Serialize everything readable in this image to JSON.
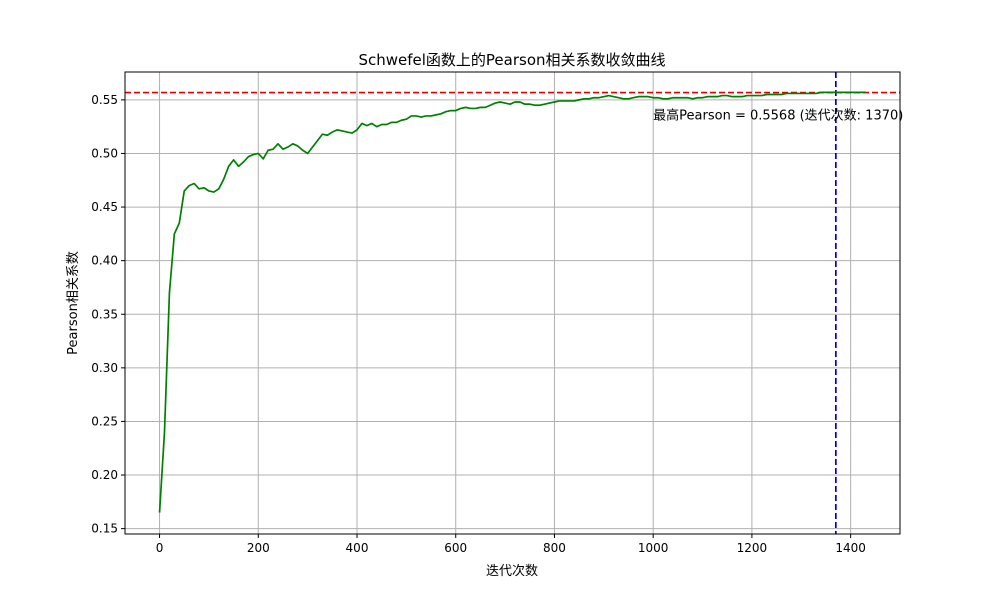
{
  "chart_data": {
    "type": "line",
    "title": "Schwefel函数上的Pearson相关系数收敛曲线",
    "xlabel": "迭代次数",
    "ylabel": "Pearson相关系数",
    "xlim": [
      -70,
      1500
    ],
    "ylim": [
      0.145,
      0.576
    ],
    "xticks": [
      0,
      200,
      400,
      600,
      800,
      1000,
      1200,
      1400
    ],
    "yticks": [
      0.15,
      0.2,
      0.25,
      0.3,
      0.35,
      0.4,
      0.45,
      0.5,
      0.55
    ],
    "grid": true,
    "series": [
      {
        "color": "#008000",
        "x": [
          0,
          10,
          20,
          30,
          40,
          50,
          60,
          70,
          80,
          90,
          100,
          110,
          120,
          130,
          140,
          150,
          160,
          170,
          180,
          190,
          200,
          210,
          220,
          230,
          240,
          250,
          260,
          270,
          280,
          290,
          300,
          310,
          320,
          330,
          340,
          350,
          360,
          370,
          380,
          390,
          400,
          410,
          420,
          430,
          440,
          450,
          460,
          470,
          480,
          490,
          500,
          510,
          520,
          530,
          540,
          550,
          560,
          570,
          580,
          590,
          600,
          610,
          620,
          630,
          640,
          650,
          660,
          670,
          680,
          690,
          700,
          710,
          720,
          730,
          740,
          750,
          760,
          770,
          780,
          790,
          800,
          810,
          820,
          830,
          840,
          850,
          860,
          870,
          880,
          890,
          900,
          910,
          920,
          930,
          940,
          950,
          960,
          970,
          980,
          990,
          1000,
          1010,
          1020,
          1030,
          1040,
          1050,
          1060,
          1070,
          1080,
          1090,
          1100,
          1110,
          1120,
          1130,
          1140,
          1150,
          1160,
          1170,
          1180,
          1190,
          1200,
          1210,
          1220,
          1230,
          1240,
          1250,
          1260,
          1270,
          1280,
          1290,
          1300,
          1310,
          1320,
          1330,
          1340,
          1350,
          1360,
          1370,
          1380,
          1390,
          1400,
          1410,
          1420,
          1430
        ],
        "values": [
          0.165,
          0.24,
          0.37,
          0.425,
          0.435,
          0.465,
          0.47,
          0.472,
          0.467,
          0.468,
          0.465,
          0.464,
          0.467,
          0.476,
          0.488,
          0.494,
          0.488,
          0.492,
          0.497,
          0.499,
          0.5,
          0.495,
          0.503,
          0.504,
          0.509,
          0.504,
          0.506,
          0.509,
          0.507,
          0.503,
          0.5,
          0.506,
          0.512,
          0.518,
          0.517,
          0.52,
          0.522,
          0.521,
          0.52,
          0.519,
          0.522,
          0.528,
          0.526,
          0.528,
          0.525,
          0.527,
          0.527,
          0.529,
          0.529,
          0.531,
          0.532,
          0.535,
          0.535,
          0.534,
          0.535,
          0.535,
          0.536,
          0.537,
          0.539,
          0.54,
          0.54,
          0.542,
          0.543,
          0.542,
          0.542,
          0.543,
          0.543,
          0.545,
          0.547,
          0.548,
          0.547,
          0.546,
          0.548,
          0.548,
          0.546,
          0.546,
          0.545,
          0.545,
          0.546,
          0.547,
          0.548,
          0.549,
          0.549,
          0.549,
          0.549,
          0.55,
          0.551,
          0.551,
          0.552,
          0.552,
          0.553,
          0.554,
          0.553,
          0.552,
          0.551,
          0.551,
          0.552,
          0.553,
          0.553,
          0.553,
          0.552,
          0.552,
          0.551,
          0.551,
          0.552,
          0.552,
          0.552,
          0.552,
          0.551,
          0.552,
          0.552,
          0.553,
          0.553,
          0.553,
          0.554,
          0.554,
          0.553,
          0.553,
          0.553,
          0.554,
          0.554,
          0.554,
          0.554,
          0.555,
          0.555,
          0.555,
          0.555,
          0.556,
          0.556,
          0.556,
          0.556,
          0.556,
          0.556,
          0.556,
          0.557,
          0.557,
          0.557,
          0.557,
          0.557,
          0.557,
          0.557,
          0.557,
          0.557,
          0.557
        ]
      }
    ],
    "reference_lines": [
      {
        "orientation": "horizontal",
        "value": 0.5568,
        "color": "#e00000",
        "style": "dashed"
      },
      {
        "orientation": "vertical",
        "value": 1370,
        "color": "#0000cc",
        "style": "dashed"
      }
    ],
    "annotation": {
      "text": "最高Pearson = 0.5568 (迭代次数: 1370)",
      "x": 1000,
      "y": 0.5315
    }
  }
}
